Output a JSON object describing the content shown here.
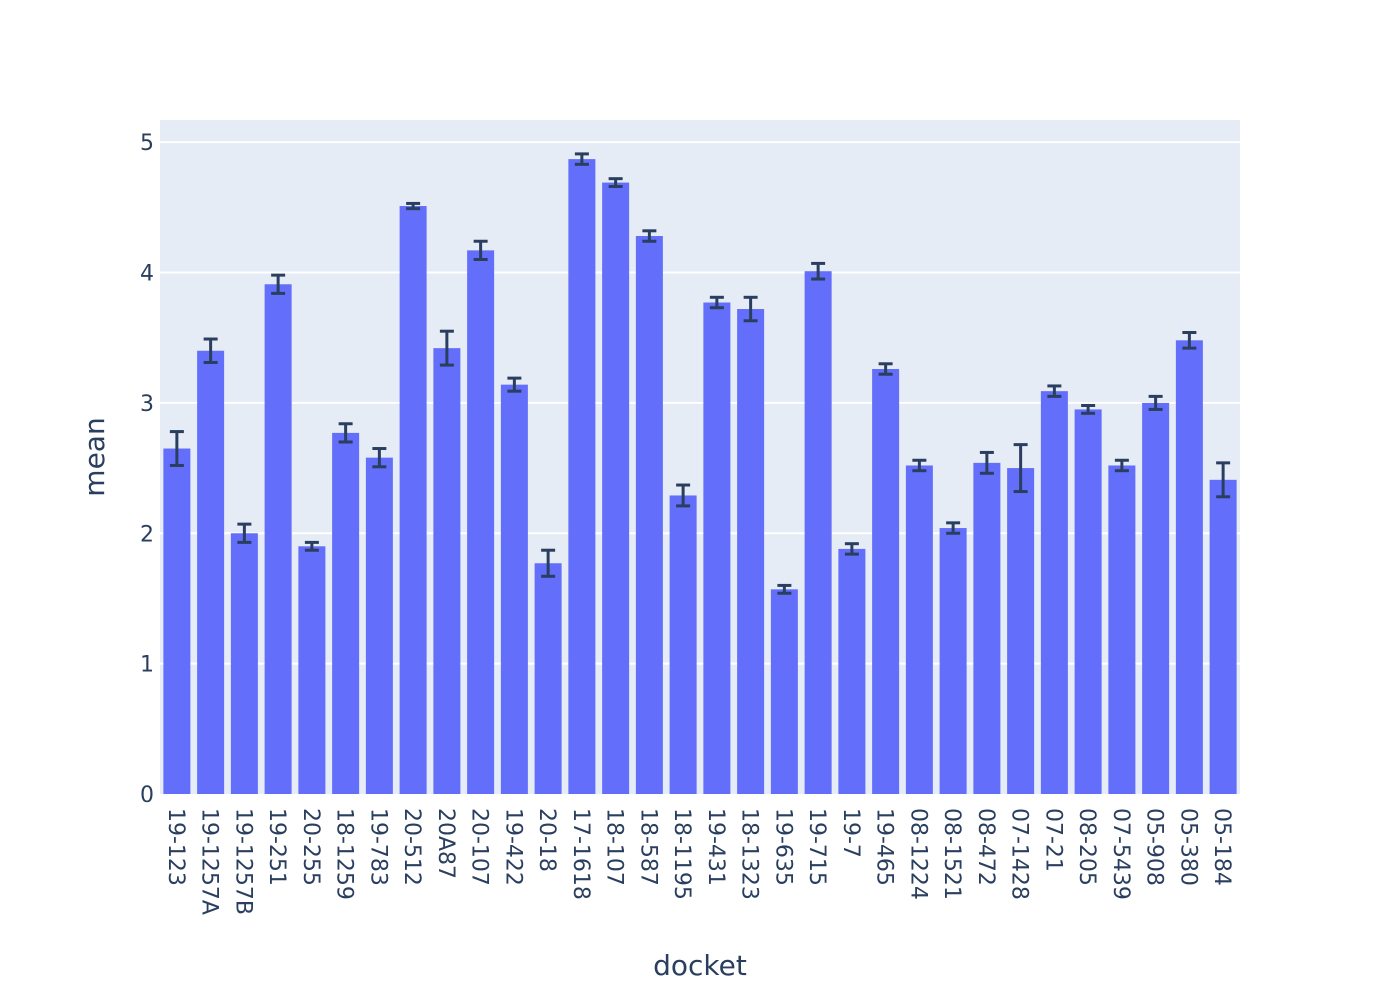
{
  "chart_data": {
    "type": "bar",
    "title": "",
    "xlabel": "docket",
    "ylabel": "mean",
    "ylim": [
      0,
      5.17
    ],
    "yticks": [
      0,
      1,
      2,
      3,
      4,
      5
    ],
    "grid": true,
    "colors": {
      "bar": "#636efa",
      "error": "#2a3f5f",
      "plot_bg": "#e5ecf6",
      "grid": "#ffffff",
      "text": "#2a3f5f"
    },
    "categories": [
      "19-123",
      "19-1257A",
      "19-1257B",
      "19-251",
      "20-255",
      "18-1259",
      "19-783",
      "20-512",
      "20A87",
      "20-107",
      "19-422",
      "20-18",
      "17-1618",
      "18-107",
      "18-587",
      "18-1195",
      "19-431",
      "18-1323",
      "19-635",
      "19-715",
      "19-7",
      "19-465",
      "08-1224",
      "08-1521",
      "08-472",
      "07-1428",
      "07-21",
      "08-205",
      "07-5439",
      "05-908",
      "05-380",
      "05-184"
    ],
    "values": [
      2.65,
      3.4,
      2.0,
      3.91,
      1.9,
      2.77,
      2.58,
      4.51,
      3.42,
      4.17,
      3.14,
      1.77,
      4.87,
      4.69,
      4.28,
      2.29,
      3.77,
      3.72,
      1.57,
      4.01,
      1.88,
      3.26,
      2.52,
      2.04,
      2.54,
      2.5,
      3.09,
      2.95,
      2.52,
      3.0,
      3.48,
      2.41
    ],
    "errors": [
      0.13,
      0.09,
      0.07,
      0.07,
      0.03,
      0.07,
      0.07,
      0.02,
      0.13,
      0.07,
      0.05,
      0.1,
      0.04,
      0.03,
      0.04,
      0.08,
      0.04,
      0.09,
      0.03,
      0.06,
      0.04,
      0.04,
      0.04,
      0.04,
      0.08,
      0.18,
      0.04,
      0.03,
      0.04,
      0.05,
      0.06,
      0.13
    ]
  }
}
